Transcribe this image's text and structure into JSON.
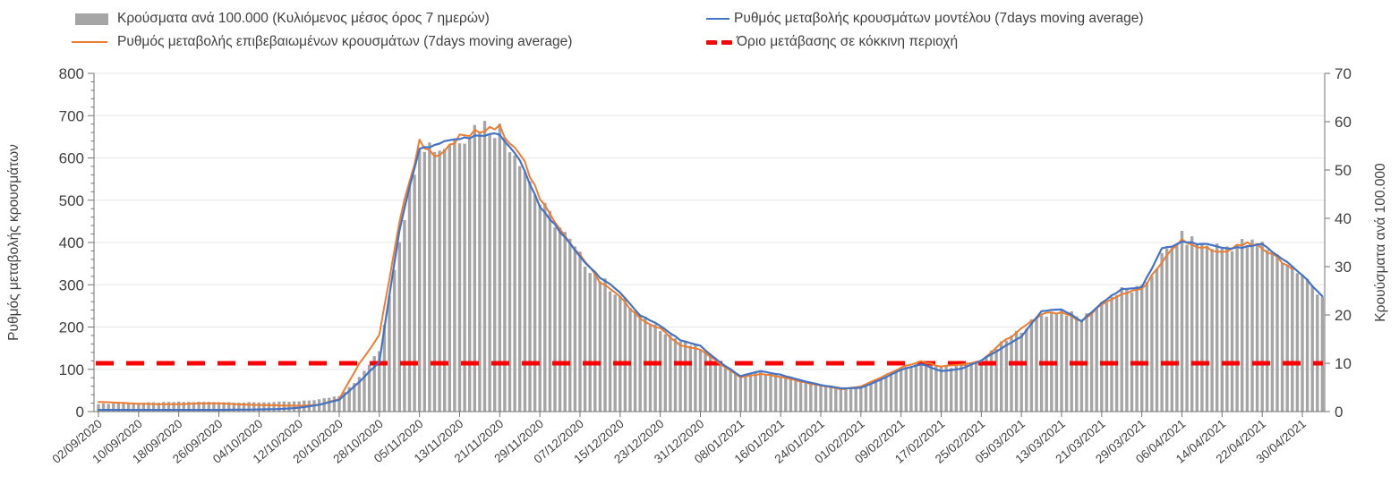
{
  "legend": {
    "items": [
      {
        "id": "cases-per-100k",
        "swatch": "bar",
        "label": "Κρούσματα ανά 100.000 (Κυλιόμενος μέσος όρος 7 ημερών)"
      },
      {
        "id": "model-rate",
        "swatch": "line-blue",
        "label": "Ρυθμός μεταβολής κρουσμάτων μοντέλου (7days moving average)"
      },
      {
        "id": "confirmed-rate",
        "swatch": "line-orange",
        "label": "Ρυθμός μεταβολής επιβεβαιωμένων κρουσμάτων (7days moving average)"
      },
      {
        "id": "red-zone-threshold",
        "swatch": "dash-red",
        "label": "Όριο μετάβασης σε κόκκινη περιοχή"
      }
    ]
  },
  "colors": {
    "bars": "#A5A5A5",
    "model_line": "#4472C4",
    "confirmed_line": "#ED7D31",
    "threshold": "#FF0000",
    "text": "#404040",
    "grid": "#E5E5E5",
    "spine": "#737373"
  },
  "chart_data": {
    "type": "bar",
    "subtype": "combo-bar-lines",
    "grid": "horizontal-major",
    "legend_position": "top",
    "left_axis": {
      "title": "Ρυθμός μεταβολής κρουσμάτων",
      "min": 0,
      "max": 800,
      "major": 100,
      "minor": 20
    },
    "right_axis": {
      "title": "Κρουύσματα ανά 100.000",
      "min": 0,
      "max": 70,
      "major": 10
    },
    "x_axis": {
      "start_date": "02/09/2020",
      "tick_interval_days": 8,
      "total_days": 244,
      "tick_labels": [
        "02/09/2020",
        "10/09/2020",
        "18/09/2020",
        "26/09/2020",
        "04/10/2020",
        "12/10/2020",
        "20/10/2020",
        "28/10/2020",
        "05/11/2020",
        "13/11/2020",
        "21/11/2020",
        "29/11/2020",
        "07/12/2020",
        "15/12/2020",
        "23/12/2020",
        "31/12/2020",
        "08/01/2021",
        "16/01/2021",
        "24/01/2021",
        "01/02/2021",
        "09/02/2021",
        "17/02/2021",
        "25/02/2021",
        "05/03/2021",
        "13/03/2021",
        "21/03/2021",
        "29/03/2021",
        "06/04/2021",
        "14/04/2021",
        "22/04/2021",
        "30/04/2021"
      ]
    },
    "threshold": {
      "label": "Όριο μετάβασης σε κόκκινη περιοχή",
      "axis": "right",
      "value": 10,
      "color": "#FF0000"
    },
    "series": [
      {
        "id": "bars",
        "name": "Κρούσματα ανά 100.000 (Κυλιόμενος μέσος όρος 7 ημερών)",
        "type": "bar",
        "axis": "right",
        "color_key": "bars",
        "days": [
          0,
          4,
          8,
          12,
          16,
          20,
          24,
          28,
          32,
          36,
          40,
          44,
          48,
          52,
          56,
          60,
          64,
          68,
          72,
          76,
          80,
          84,
          88,
          92,
          96,
          100,
          104,
          108,
          112,
          116,
          120,
          124,
          128,
          132,
          136,
          140,
          144,
          148,
          152,
          156,
          160,
          164,
          168,
          172,
          176,
          180,
          184,
          188,
          192,
          196,
          200,
          204,
          208,
          212,
          216,
          220,
          224,
          228,
          232,
          236,
          240,
          244
        ],
        "values": [
          1.6,
          1.7,
          1.8,
          1.9,
          2,
          2,
          2,
          1.9,
          1.9,
          2,
          2.1,
          2.5,
          3.3,
          7,
          12.5,
          36,
          56,
          54.5,
          57,
          59.5,
          58.5,
          52.5,
          43,
          38,
          32,
          27.5,
          24,
          19.5,
          17.3,
          14.5,
          13,
          10,
          7.3,
          8.1,
          7.4,
          6.3,
          5.5,
          4.8,
          5,
          6.9,
          8.9,
          10.1,
          9.2,
          9.6,
          10.4,
          14,
          17,
          20,
          21,
          19,
          22.5,
          25,
          25.3,
          32,
          36,
          34.5,
          34,
          34.8,
          34.5,
          31.5,
          28,
          24
        ]
      },
      {
        "id": "confirmed",
        "name": "Ρυθμός μεταβολής επιβεβαιωμένων κρουσμάτων (7days moving average)",
        "type": "line",
        "axis": "left",
        "color_key": "confirmed_line",
        "days": [
          0,
          4,
          8,
          12,
          16,
          20,
          24,
          28,
          32,
          36,
          40,
          44,
          48,
          52,
          56,
          60,
          64,
          68,
          72,
          76,
          80,
          84,
          88,
          92,
          96,
          100,
          104,
          108,
          112,
          116,
          120,
          124,
          128,
          132,
          136,
          140,
          144,
          148,
          152,
          156,
          160,
          164,
          168,
          172,
          176,
          180,
          184,
          188,
          192,
          196,
          200,
          204,
          208,
          212,
          216,
          220,
          224,
          228,
          232,
          236,
          238
        ],
        "values": [
          23,
          21,
          18.5,
          17.5,
          17.5,
          19,
          19.5,
          17,
          15.5,
          14.5,
          13.5,
          16,
          30,
          113,
          180,
          450,
          638,
          600,
          648,
          662,
          670,
          615,
          500,
          435,
          370,
          307,
          272,
          218,
          196,
          155,
          147,
          113,
          80,
          90,
          82,
          71,
          61,
          53,
          59,
          81,
          104,
          118,
          107,
          110,
          119,
          162,
          195,
          230,
          235,
          212,
          252,
          280,
          287,
          352,
          408,
          388,
          375,
          398,
          390,
          352,
          338
        ]
      },
      {
        "id": "model",
        "name": "Ρυθμός μεταβολής κρουσμάτων μοντέλου (7days moving average)",
        "type": "line",
        "axis": "left",
        "color_key": "model_line",
        "days": [
          0,
          4,
          8,
          12,
          16,
          20,
          24,
          28,
          32,
          36,
          40,
          44,
          48,
          52,
          56,
          60,
          64,
          68,
          72,
          76,
          80,
          84,
          88,
          92,
          96,
          100,
          104,
          108,
          112,
          116,
          120,
          124,
          128,
          132,
          136,
          140,
          144,
          148,
          152,
          156,
          160,
          164,
          168,
          172,
          176,
          180,
          184,
          188,
          192,
          196,
          200,
          204,
          208,
          212,
          216,
          220,
          224,
          228,
          232,
          236,
          240,
          244
        ],
        "values": [
          4,
          4,
          4,
          4,
          4,
          4,
          4,
          4.5,
          5,
          6,
          9,
          16,
          28,
          70,
          118,
          430,
          625,
          633,
          645,
          655,
          658,
          595,
          487,
          425,
          366,
          318,
          282,
          227,
          203,
          169,
          155,
          116,
          84,
          96,
          87,
          74,
          63,
          55,
          56,
          76,
          99,
          112,
          96,
          101,
          121,
          150,
          178,
          238,
          242,
          214,
          258,
          290,
          293,
          385,
          400,
          396,
          388,
          387,
          396,
          362,
          322,
          272
        ]
      }
    ]
  }
}
